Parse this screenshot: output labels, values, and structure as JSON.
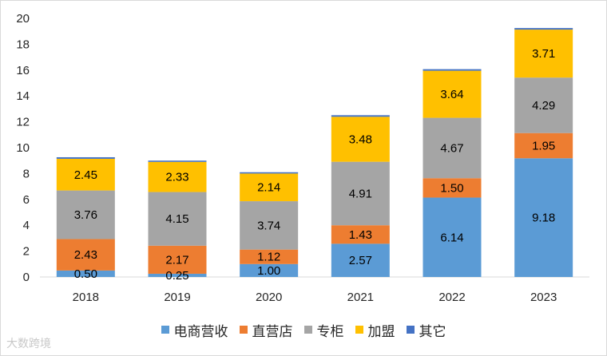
{
  "chart_data": {
    "type": "bar",
    "stacked": true,
    "categories": [
      "2018",
      "2019",
      "2020",
      "2021",
      "2022",
      "2023"
    ],
    "series": [
      {
        "name": "电商营收",
        "color": "#5b9bd5",
        "values": [
          0.5,
          0.25,
          1.0,
          2.57,
          6.14,
          9.18
        ],
        "labels": [
          "0.50",
          "0.25",
          "1.00",
          "2.57",
          "6.14",
          "9.18"
        ]
      },
      {
        "name": "直营店",
        "color": "#ed7d31",
        "values": [
          2.43,
          2.17,
          1.12,
          1.43,
          1.5,
          1.95
        ],
        "labels": [
          "2.43",
          "2.17",
          "1.12",
          "1.43",
          "1.50",
          "1.95"
        ]
      },
      {
        "name": "专柜",
        "color": "#a5a5a5",
        "values": [
          3.76,
          4.15,
          3.74,
          4.91,
          4.67,
          4.29
        ],
        "labels": [
          "3.76",
          "4.15",
          "3.74",
          "4.91",
          "4.67",
          "4.29"
        ]
      },
      {
        "name": "加盟",
        "color": "#ffc000",
        "values": [
          2.45,
          2.33,
          2.14,
          3.48,
          3.64,
          3.71
        ],
        "labels": [
          "2.45",
          "2.33",
          "2.14",
          "3.48",
          "3.64",
          "3.71"
        ]
      },
      {
        "name": "其它",
        "color": "#4472c4",
        "values": [
          0.12,
          0.1,
          0.1,
          0.12,
          0.12,
          0.12
        ],
        "labels": null
      }
    ],
    "ylim": [
      0,
      20
    ],
    "yticks": [
      "0",
      "2",
      "4",
      "6",
      "8",
      "10",
      "12",
      "14",
      "16",
      "18",
      "20"
    ],
    "title": "",
    "xlabel": "",
    "ylabel": "",
    "grid": false,
    "legend": "bottom"
  },
  "watermark": "大数跨境"
}
